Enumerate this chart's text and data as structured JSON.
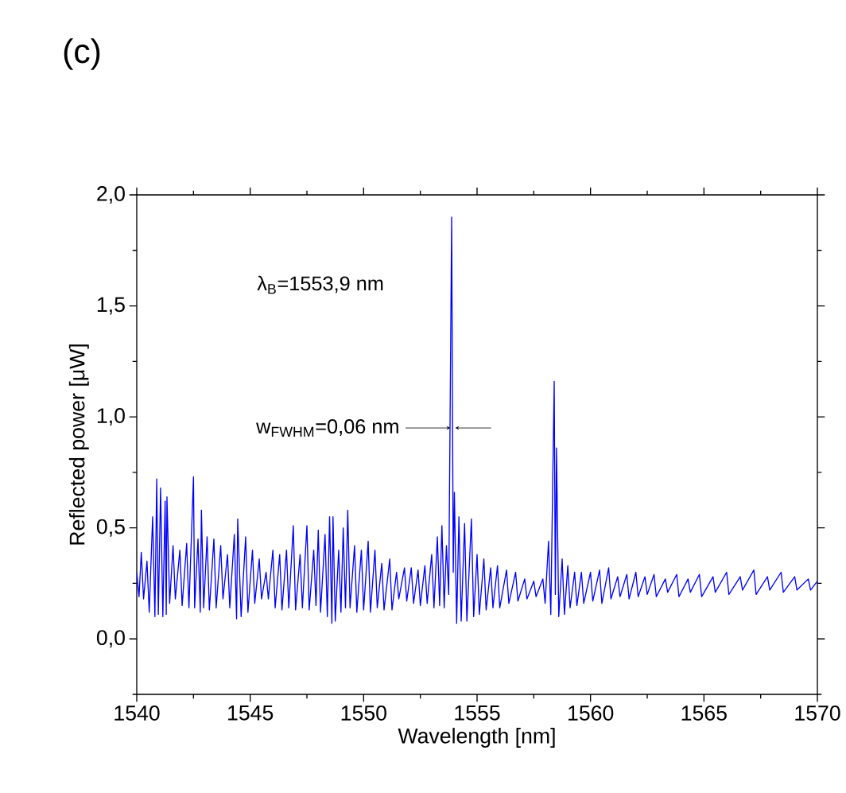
{
  "chart_data": {
    "type": "line",
    "title": "(c)",
    "xlabel": "Wavelength [nm]",
    "ylabel": "Reflected power [μW]",
    "x": [
      1540.0,
      1540.1,
      1540.2,
      1540.3,
      1540.45,
      1540.55,
      1540.7,
      1540.8,
      1540.88,
      1540.95,
      1541.05,
      1541.15,
      1541.25,
      1541.3,
      1541.33,
      1541.45,
      1541.6,
      1541.7,
      1541.9,
      1542.0,
      1542.2,
      1542.3,
      1542.5,
      1542.55,
      1542.7,
      1542.8,
      1542.85,
      1542.95,
      1543.1,
      1543.2,
      1543.4,
      1543.5,
      1543.7,
      1543.8,
      1544.0,
      1544.1,
      1544.3,
      1544.4,
      1544.45,
      1544.6,
      1544.8,
      1544.9,
      1545.1,
      1545.2,
      1545.4,
      1545.5,
      1545.7,
      1545.8,
      1546.0,
      1546.1,
      1546.3,
      1546.4,
      1546.6,
      1546.7,
      1546.9,
      1547.0,
      1547.2,
      1547.3,
      1547.5,
      1547.6,
      1547.8,
      1547.9,
      1548.0,
      1548.1,
      1548.3,
      1548.4,
      1548.5,
      1548.6,
      1548.65,
      1548.75,
      1548.9,
      1549.0,
      1549.1,
      1549.2,
      1549.3,
      1549.4,
      1549.6,
      1549.7,
      1549.9,
      1550.0,
      1550.2,
      1550.3,
      1550.5,
      1550.6,
      1550.8,
      1550.9,
      1551.15,
      1551.25,
      1551.45,
      1551.55,
      1551.8,
      1551.9,
      1552.1,
      1552.2,
      1552.4,
      1552.5,
      1552.7,
      1552.8,
      1553.0,
      1553.1,
      1553.25,
      1553.35,
      1553.45,
      1553.55,
      1553.65,
      1553.75,
      1553.88,
      1553.95,
      1554.0,
      1554.1,
      1554.2,
      1554.3,
      1554.45,
      1554.55,
      1554.75,
      1554.85,
      1555.0,
      1555.1,
      1555.3,
      1555.4,
      1555.6,
      1555.7,
      1555.9,
      1556.0,
      1556.3,
      1556.4,
      1556.7,
      1556.8,
      1557.1,
      1557.2,
      1557.5,
      1557.6,
      1557.9,
      1558.0,
      1558.15,
      1558.25,
      1558.4,
      1558.45,
      1558.5,
      1558.6,
      1558.75,
      1558.85,
      1559.0,
      1559.1,
      1559.3,
      1559.4,
      1559.6,
      1559.7,
      1560.0,
      1560.1,
      1560.4,
      1560.5,
      1560.8,
      1560.9,
      1561.2,
      1561.3,
      1561.6,
      1561.7,
      1562.0,
      1562.1,
      1562.4,
      1562.5,
      1562.8,
      1562.9,
      1563.3,
      1563.4,
      1563.8,
      1563.9,
      1564.3,
      1564.4,
      1564.8,
      1564.9,
      1565.4,
      1565.5,
      1566.0,
      1566.1,
      1566.6,
      1566.7,
      1567.2,
      1567.3,
      1567.8,
      1567.9,
      1568.4,
      1568.5,
      1569.0,
      1569.1,
      1569.6,
      1569.7,
      1570.0
    ],
    "series": [
      {
        "color": "#0000ff",
        "values": [
          0.3,
          0.19,
          0.39,
          0.18,
          0.35,
          0.12,
          0.55,
          0.1,
          0.72,
          0.11,
          0.68,
          0.1,
          0.62,
          0.11,
          0.64,
          0.16,
          0.42,
          0.18,
          0.4,
          0.15,
          0.43,
          0.14,
          0.73,
          0.14,
          0.45,
          0.12,
          0.58,
          0.14,
          0.46,
          0.13,
          0.45,
          0.14,
          0.42,
          0.18,
          0.38,
          0.14,
          0.47,
          0.09,
          0.54,
          0.1,
          0.46,
          0.12,
          0.4,
          0.16,
          0.36,
          0.18,
          0.3,
          0.18,
          0.4,
          0.14,
          0.38,
          0.13,
          0.4,
          0.14,
          0.51,
          0.13,
          0.38,
          0.14,
          0.51,
          0.13,
          0.4,
          0.15,
          0.49,
          0.12,
          0.47,
          0.1,
          0.55,
          0.07,
          0.55,
          0.08,
          0.4,
          0.12,
          0.5,
          0.14,
          0.58,
          0.14,
          0.42,
          0.12,
          0.4,
          0.13,
          0.44,
          0.12,
          0.4,
          0.14,
          0.34,
          0.13,
          0.36,
          0.13,
          0.3,
          0.18,
          0.32,
          0.17,
          0.32,
          0.16,
          0.31,
          0.15,
          0.33,
          0.16,
          0.38,
          0.14,
          0.46,
          0.15,
          0.51,
          0.14,
          0.42,
          0.2,
          1.9,
          0.3,
          0.66,
          0.07,
          0.55,
          0.08,
          0.52,
          0.08,
          0.54,
          0.1,
          0.38,
          0.11,
          0.36,
          0.13,
          0.32,
          0.14,
          0.33,
          0.14,
          0.31,
          0.16,
          0.3,
          0.17,
          0.27,
          0.18,
          0.26,
          0.19,
          0.27,
          0.16,
          0.44,
          0.11,
          1.16,
          0.2,
          0.86,
          0.1,
          0.36,
          0.11,
          0.33,
          0.14,
          0.3,
          0.15,
          0.3,
          0.16,
          0.3,
          0.17,
          0.31,
          0.16,
          0.32,
          0.18,
          0.28,
          0.19,
          0.29,
          0.18,
          0.3,
          0.19,
          0.28,
          0.2,
          0.29,
          0.19,
          0.27,
          0.21,
          0.29,
          0.19,
          0.27,
          0.21,
          0.29,
          0.19,
          0.28,
          0.21,
          0.3,
          0.2,
          0.28,
          0.22,
          0.31,
          0.2,
          0.28,
          0.22,
          0.3,
          0.21,
          0.28,
          0.22,
          0.27,
          0.22,
          0.26
        ]
      }
    ],
    "xlim": [
      1540,
      1570
    ],
    "ylim": [
      -0.25,
      2.0
    ],
    "xticks": [
      1540,
      {
        "value": 1542.5,
        "label": null
      },
      1545,
      {
        "value": 1547.5,
        "label": null
      },
      1550,
      {
        "value": 1552.5,
        "label": null
      },
      1555,
      {
        "value": 1557.5,
        "label": null
      },
      1560,
      {
        "value": 1562.5,
        "label": null
      },
      1565,
      {
        "value": 1567.5,
        "label": null
      },
      1570
    ],
    "yticks": [
      {
        "value": -0.25,
        "label": null
      },
      {
        "value": 0,
        "label": "0,0"
      },
      {
        "value": 0.25,
        "label": null
      },
      {
        "value": 0.5,
        "label": "0,5"
      },
      {
        "value": 0.75,
        "label": null
      },
      {
        "value": 1.0,
        "label": "1,0"
      },
      {
        "value": 1.25,
        "label": null
      },
      {
        "value": 1.5,
        "label": "1,5"
      },
      {
        "value": 1.75,
        "label": null
      },
      {
        "value": 2.0,
        "label": "2,0"
      }
    ],
    "annotations": [
      "λ$_{B}$=1553,9 nm",
      {
        "text": "w$_{FWHM}$=0,06 nm",
        "x": 1553.9,
        "y": 0.95
      }
    ]
  }
}
